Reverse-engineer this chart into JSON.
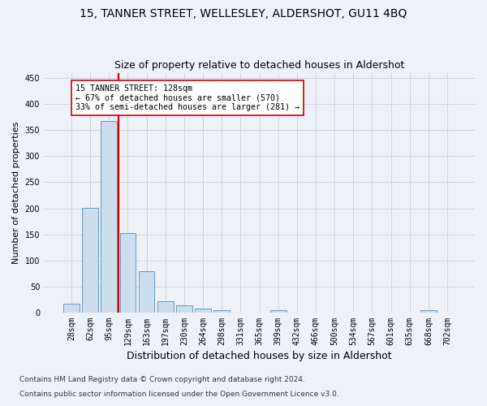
{
  "title": "15, TANNER STREET, WELLESLEY, ALDERSHOT, GU11 4BQ",
  "subtitle": "Size of property relative to detached houses in Aldershot",
  "xlabel": "Distribution of detached houses by size in Aldershot",
  "ylabel": "Number of detached properties",
  "bar_color": "#ccdded",
  "bar_edge_color": "#6699bb",
  "marker_color": "#cc0000",
  "categories": [
    "28sqm",
    "62sqm",
    "95sqm",
    "129sqm",
    "163sqm",
    "197sqm",
    "230sqm",
    "264sqm",
    "298sqm",
    "331sqm",
    "365sqm",
    "399sqm",
    "432sqm",
    "466sqm",
    "500sqm",
    "534sqm",
    "567sqm",
    "601sqm",
    "635sqm",
    "668sqm",
    "702sqm"
  ],
  "values": [
    17,
    201,
    367,
    153,
    79,
    21,
    14,
    8,
    5,
    0,
    0,
    5,
    0,
    0,
    0,
    0,
    0,
    0,
    0,
    5,
    0
  ],
  "ylim": [
    0,
    460
  ],
  "yticks": [
    0,
    50,
    100,
    150,
    200,
    250,
    300,
    350,
    400,
    450
  ],
  "annotation_title": "15 TANNER STREET: 128sqm",
  "annotation_line1": "← 67% of detached houses are smaller (570)",
  "annotation_line2": "33% of semi-detached houses are larger (281) →",
  "footer_line1": "Contains HM Land Registry data © Crown copyright and database right 2024.",
  "footer_line2": "Contains public sector information licensed under the Open Government Licence v3.0.",
  "background_color": "#eef2f8",
  "plot_bg_color": "#eef2f8",
  "grid_color": "#c8ccd8",
  "title_fontsize": 10,
  "subtitle_fontsize": 9,
  "footer_fontsize": 6.5,
  "ylabel_fontsize": 8,
  "xlabel_fontsize": 9,
  "tick_fontsize": 7
}
